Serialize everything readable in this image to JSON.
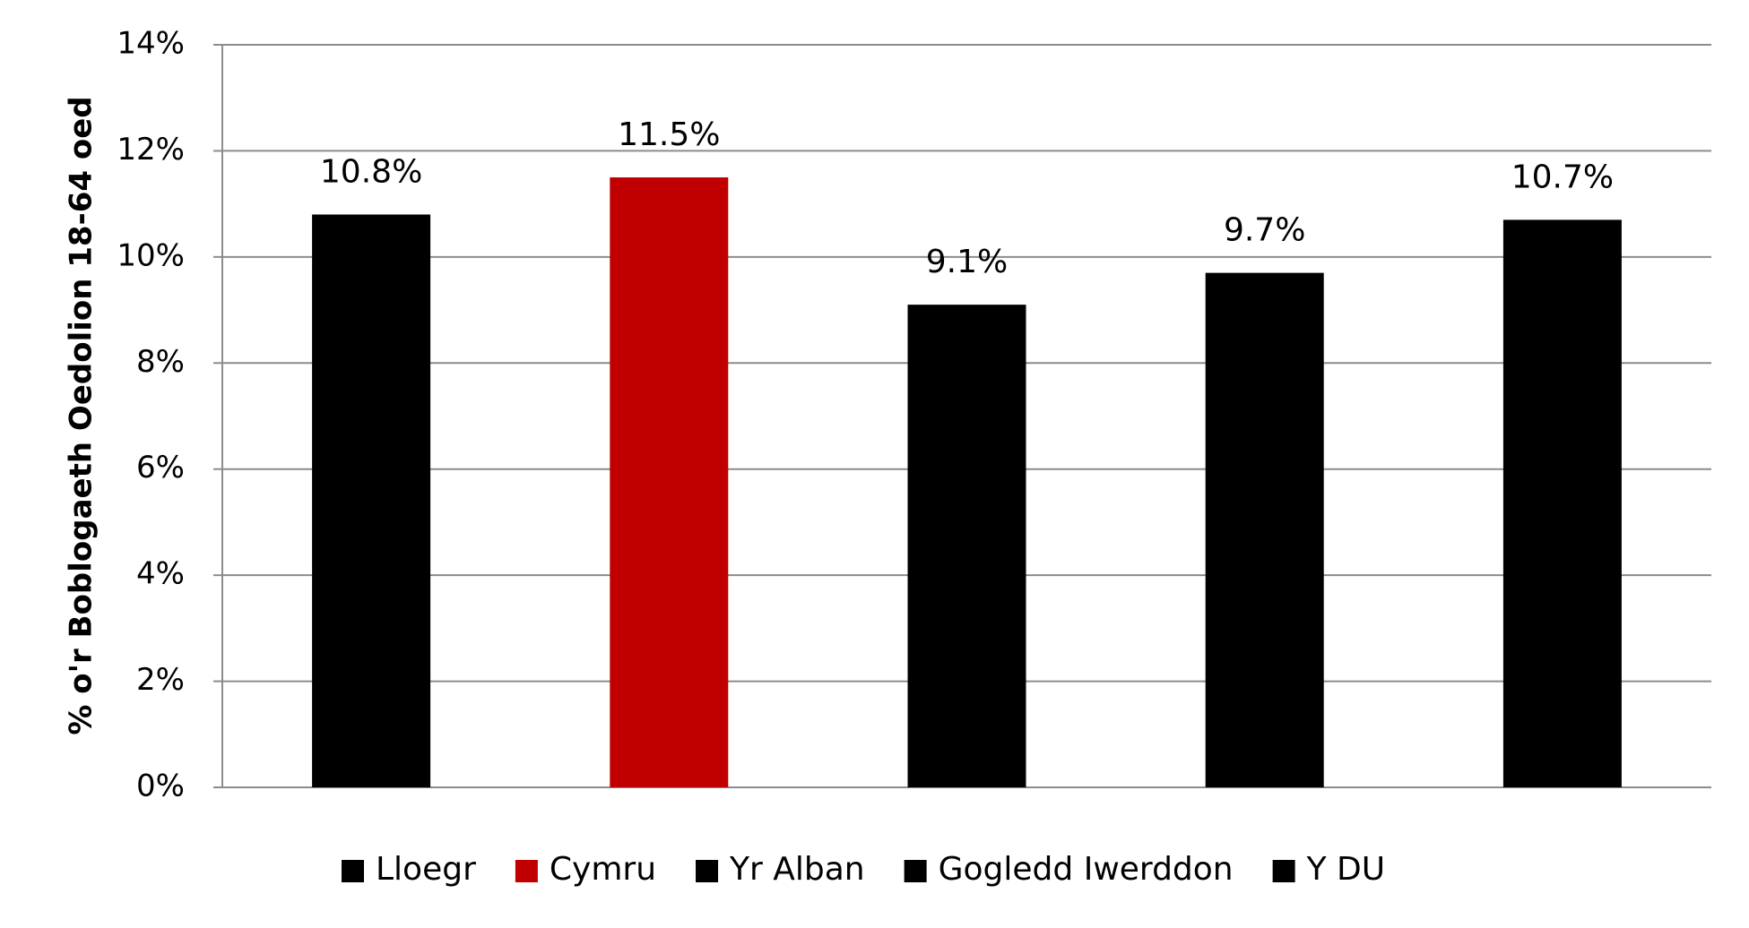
{
  "chart_data": {
    "type": "bar",
    "y_label": "% o'r Boblogaeth Oedolion 18-64 oed",
    "series": [
      {
        "name": "Lloegr",
        "color": "#000000",
        "values": [
          10.8
        ],
        "value_labels": [
          "10.8%"
        ]
      },
      {
        "name": "Cymru",
        "color": "#c00000",
        "values": [
          11.5
        ],
        "value_labels": [
          "11.5%"
        ]
      },
      {
        "name": "Yr Alban",
        "color": "#000000",
        "values": [
          9.1
        ],
        "value_labels": [
          "9.1%"
        ]
      },
      {
        "name": "Gogledd Iwerddon",
        "color": "#000000",
        "values": [
          9.7
        ],
        "value_labels": [
          "9.7%"
        ]
      },
      {
        "name": "Y DU",
        "color": "#000000",
        "values": [
          10.7
        ],
        "value_labels": [
          "10.7%"
        ]
      }
    ],
    "ylim": [
      0,
      14
    ],
    "yticks": [
      {
        "value": 0,
        "label": "0%"
      },
      {
        "value": 2,
        "label": "2%"
      },
      {
        "value": 4,
        "label": "4%"
      },
      {
        "value": 6,
        "label": "6%"
      },
      {
        "value": 8,
        "label": "8%"
      },
      {
        "value": 10,
        "label": "10%"
      },
      {
        "value": 12,
        "label": "12%"
      },
      {
        "value": 14,
        "label": "14%"
      }
    ],
    "grid": true,
    "legend": "bottom"
  }
}
